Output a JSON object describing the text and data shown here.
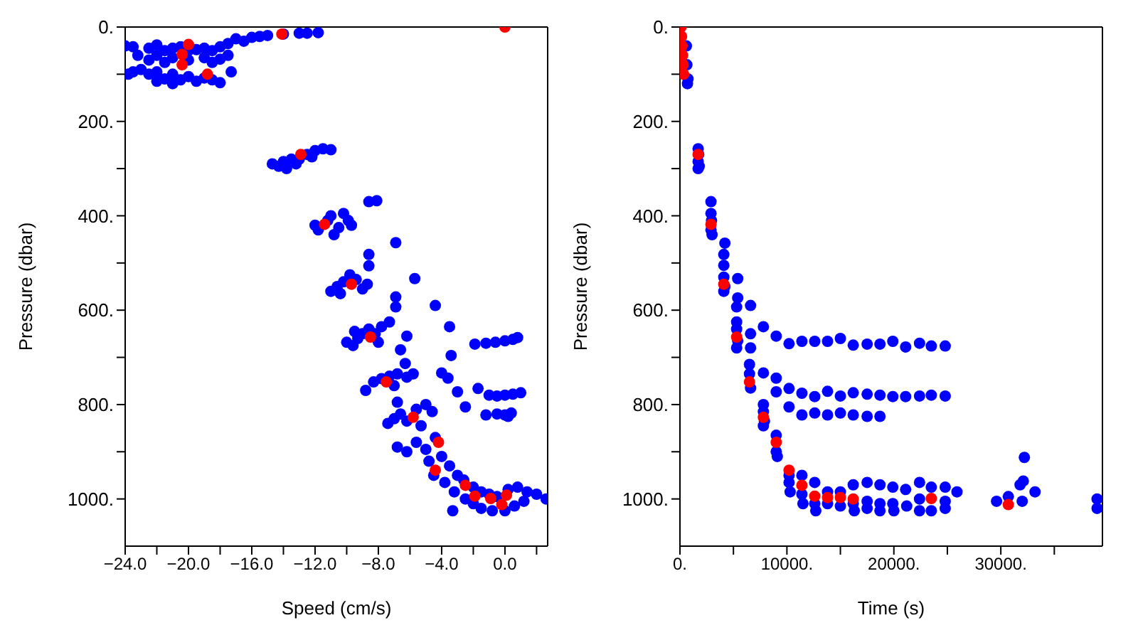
{
  "chart_data": [
    {
      "type": "scatter",
      "xlabel": "Speed (cm/s)",
      "ylabel": "Pressure (dbar)",
      "marker": "circle",
      "xlim": [
        -24,
        2.7
      ],
      "xticks": [
        {
          "value": -24,
          "label": "−24.0"
        },
        {
          "value": -22,
          "label": null
        },
        {
          "value": -20,
          "label": "−20.0"
        },
        {
          "value": -18,
          "label": null
        },
        {
          "value": -16,
          "label": "−16.0"
        },
        {
          "value": -14,
          "label": null
        },
        {
          "value": -12,
          "label": "−12.0"
        },
        {
          "value": -10,
          "label": null
        },
        {
          "value": -8,
          "label": "−8.0"
        },
        {
          "value": -6,
          "label": null
        },
        {
          "value": -4,
          "label": "−4.0"
        },
        {
          "value": -2,
          "label": null
        },
        {
          "value": 0,
          "label": "0.0"
        },
        {
          "value": 2,
          "label": null
        }
      ],
      "ylim": [
        1100,
        0
      ],
      "yticks": [
        {
          "value": 0,
          "label": "0."
        },
        {
          "value": 100,
          "label": null
        },
        {
          "value": 200,
          "label": "200."
        },
        {
          "value": 300,
          "label": null
        },
        {
          "value": 400,
          "label": "400."
        },
        {
          "value": 500,
          "label": null
        },
        {
          "value": 600,
          "label": "600."
        },
        {
          "value": 700,
          "label": null
        },
        {
          "value": 800,
          "label": "800."
        },
        {
          "value": 900,
          "label": null
        },
        {
          "value": 1000,
          "label": "1000."
        }
      ],
      "series": [
        {
          "color": "#0000ff",
          "x": [
            -24,
            -23.5,
            -22.5,
            -22,
            -21.5,
            -21,
            -20.5,
            -20,
            -19.5,
            -19,
            -18.5,
            -18,
            -17.5,
            -23.2,
            -22.5,
            -22,
            -21.5,
            -21,
            -20,
            -19,
            -18.5,
            -18,
            -17.5,
            -23.5,
            -23,
            -22.5,
            -22,
            -21.5,
            -21,
            -20.5,
            -20,
            -19.5,
            -19,
            -18.5,
            -18,
            -17.3,
            -22,
            -21,
            -23.8,
            -17,
            -16,
            -15,
            -14,
            -13,
            -12.5,
            -11.8,
            -16.5,
            -15.5,
            -14.7,
            -14.3,
            -14,
            -13.5,
            -13,
            -12.5,
            -12,
            -11.5,
            -11,
            -13.8,
            -13.2,
            -12.2,
            -12,
            -11.8,
            -11.2,
            -11,
            -10.8,
            -10.5,
            -10.2,
            -9.9,
            -9.7,
            -8.6,
            -8.1,
            -11,
            -10.6,
            -10.2,
            -9.8,
            -9.4,
            -9,
            -8.7,
            -10.4,
            -6.9,
            -8.6,
            -8.6,
            -5.7,
            -6.9,
            -6.9,
            -4.4,
            -3.5,
            -6.2,
            -6.6,
            -3.4,
            -6.3,
            -4,
            -3.6,
            -3,
            -2.5,
            -1.7,
            -1.2,
            -10,
            -9.6,
            -9.3,
            -9,
            -8.6,
            -8.2,
            -7.8,
            -7.3,
            -9.5,
            -8,
            -8.8,
            -8.3,
            -7.8,
            -7.3,
            -6.8,
            -6.2,
            -5.8,
            -7,
            -7.4,
            -7,
            -6.6,
            -6.2,
            -5.6,
            -5,
            -4.6,
            -5.3,
            -6.8,
            -6.8,
            -6.2,
            -5.6,
            -5,
            -4.4,
            -4.8,
            -4,
            -3.5,
            -3,
            -4.5,
            -3.8,
            -2.6,
            -2,
            -1.5,
            -1,
            -0.5,
            0.2,
            0.8,
            1.4,
            2,
            2.6,
            -3.2,
            -2.5,
            -2,
            -1.5,
            -0.8,
            0,
            0.6,
            1.2,
            -3.3,
            -1.9,
            -1.2,
            -0.6,
            0,
            0.5,
            0.8,
            -1,
            -0.5,
            0,
            0.5,
            1,
            -0.5,
            0,
            0.4,
            0.2
          ],
          "values": [
            40,
            42,
            45,
            38,
            50,
            45,
            42,
            50,
            48,
            45,
            50,
            42,
            35,
            60,
            70,
            60,
            75,
            65,
            70,
            65,
            75,
            68,
            60,
            95,
            90,
            100,
            95,
            110,
            100,
            112,
            105,
            115,
            108,
            112,
            118,
            95,
            115,
            120,
            100,
            25,
            22,
            18,
            15,
            13,
            13,
            12,
            30,
            20,
            290,
            295,
            285,
            280,
            280,
            270,
            262,
            258,
            260,
            300,
            290,
            275,
            420,
            430,
            410,
            400,
            440,
            425,
            395,
            410,
            420,
            370,
            368,
            560,
            550,
            540,
            525,
            535,
            555,
            545,
            565,
            457,
            482,
            506,
            533,
            572,
            593,
            590,
            635,
            655,
            684,
            696,
            713,
            733,
            744,
            773,
            805,
            766,
            822,
            668,
            675,
            660,
            650,
            640,
            650,
            635,
            625,
            645,
            668,
            770,
            752,
            745,
            740,
            735,
            742,
            735,
            760,
            840,
            830,
            820,
            835,
            810,
            800,
            815,
            845,
            795,
            890,
            900,
            880,
            895,
            870,
            920,
            910,
            930,
            950,
            950,
            965,
            960,
            975,
            985,
            990,
            995,
            980,
            975,
            985,
            990,
            1000,
            985,
            1000,
            1010,
            1020,
            1025,
            1025,
            1015,
            1005,
            1025,
            672,
            670,
            668,
            665,
            662,
            658,
            780,
            782,
            780,
            778,
            775,
            820,
            822,
            818,
            825
          ]
        },
        {
          "color": "#ff0000",
          "x": [
            0,
            -14.1,
            -20,
            -20.4,
            -20.4,
            -18.8,
            -12.9,
            -11.4,
            -9.7,
            -8.5,
            -7.5,
            -5.8,
            -4.2,
            -4.4,
            -2.5,
            -1.9,
            -0.9,
            -0.2,
            0.1
          ],
          "values": [
            0,
            15,
            37,
            58,
            80,
            100,
            270,
            418,
            545,
            657,
            752,
            827,
            880,
            939,
            971,
            994,
            999,
            1012,
            992
          ]
        }
      ]
    },
    {
      "type": "scatter",
      "xlabel": "Time (s)",
      "ylabel": "Pressure (dbar)",
      "marker": "circle",
      "xlim": [
        0,
        39500
      ],
      "xticks": [
        {
          "value": 0,
          "label": "0."
        },
        {
          "value": 5000,
          "label": null
        },
        {
          "value": 10000,
          "label": "10000."
        },
        {
          "value": 15000,
          "label": null
        },
        {
          "value": 20000,
          "label": "20000."
        },
        {
          "value": 25000,
          "label": null
        },
        {
          "value": 30000,
          "label": "30000."
        },
        {
          "value": 35000,
          "label": null
        }
      ],
      "ylim": [
        1100,
        0
      ],
      "yticks": [
        {
          "value": 0,
          "label": "0."
        },
        {
          "value": 100,
          "label": null
        },
        {
          "value": 200,
          "label": "200."
        },
        {
          "value": 300,
          "label": null
        },
        {
          "value": 400,
          "label": "400."
        },
        {
          "value": 500,
          "label": null
        },
        {
          "value": 600,
          "label": "600."
        },
        {
          "value": 700,
          "label": null
        },
        {
          "value": 800,
          "label": "800."
        },
        {
          "value": 900,
          "label": null
        },
        {
          "value": 1000,
          "label": "1000."
        }
      ],
      "series": [
        {
          "color": "#0000ff",
          "x": [
            650,
            700,
            600,
            750,
            1700,
            1750,
            1700,
            1800,
            1700,
            2900,
            2900,
            2950,
            2900,
            3000,
            4200,
            4100,
            4100,
            4100,
            4200,
            4100,
            5400,
            5400,
            5300,
            6600,
            5300,
            5300,
            5400,
            5300,
            6600,
            6600,
            6500,
            6500,
            6600,
            7800,
            7800,
            7800,
            7900,
            9000,
            9000,
            9100,
            10200,
            10200,
            10300,
            11400,
            11400,
            11500,
            12600,
            12600,
            12700,
            13800,
            13800,
            15000,
            15000,
            16200,
            16200,
            16300,
            17500,
            17500,
            17500,
            18700,
            18700,
            18700,
            19900,
            19900,
            20000,
            21100,
            21200,
            22400,
            22400,
            22400,
            23500,
            23500,
            24800,
            24800,
            24800,
            25900,
            29600,
            30700,
            32000,
            31800,
            32100,
            32200,
            33200,
            39000,
            39000,
            7800,
            9000,
            10200,
            11400,
            12600,
            13800,
            15000,
            16200,
            17500,
            18700,
            19900,
            21100,
            22400,
            23500,
            24800,
            7800,
            9000,
            9000,
            10200,
            11400,
            12600,
            13800,
            15000,
            16200,
            17500,
            18700,
            19900,
            21100,
            22400,
            23500,
            24800,
            10200,
            11400,
            12600,
            13800,
            15000,
            16200,
            17500,
            18700
          ],
          "values": [
            80,
            120,
            40,
            110,
            258,
            270,
            285,
            295,
            300,
            370,
            395,
            410,
            430,
            440,
            458,
            482,
            505,
            530,
            550,
            560,
            533,
            574,
            593,
            590,
            625,
            640,
            665,
            680,
            650,
            680,
            715,
            735,
            765,
            800,
            815,
            845,
            835,
            865,
            900,
            910,
            950,
            965,
            985,
            950,
            990,
            1010,
            965,
            1010,
            1025,
            985,
            1010,
            985,
            1015,
            970,
            1010,
            1025,
            965,
            1005,
            1020,
            970,
            1010,
            1025,
            975,
            1010,
            1025,
            980,
            1015,
            965,
            1000,
            1025,
            975,
            1025,
            975,
            1005,
            1020,
            985,
            1005,
            995,
            1005,
            970,
            962,
            912,
            985,
            1000,
            1020,
            635,
            655,
            671,
            666,
            666,
            666,
            660,
            674,
            672,
            672,
            666,
            678,
            670,
            676,
            676,
            733,
            744,
            773,
            766,
            776,
            783,
            772,
            782,
            775,
            778,
            780,
            783,
            783,
            782,
            780,
            782,
            805,
            822,
            818,
            822,
            818,
            822,
            825,
            825
          ]
        },
        {
          "color": "#ff0000",
          "x": [
            100,
            150,
            200,
            250,
            300,
            350,
            1700,
            2900,
            4100,
            5300,
            6500,
            7800,
            9000,
            10200,
            11400,
            12600,
            13800,
            15000,
            16200,
            23500,
            30700
          ],
          "values": [
            0,
            20,
            40,
            60,
            80,
            100,
            270,
            418,
            545,
            657,
            752,
            827,
            880,
            939,
            971,
            994,
            997,
            997,
            1000,
            999,
            1012
          ]
        }
      ]
    }
  ]
}
